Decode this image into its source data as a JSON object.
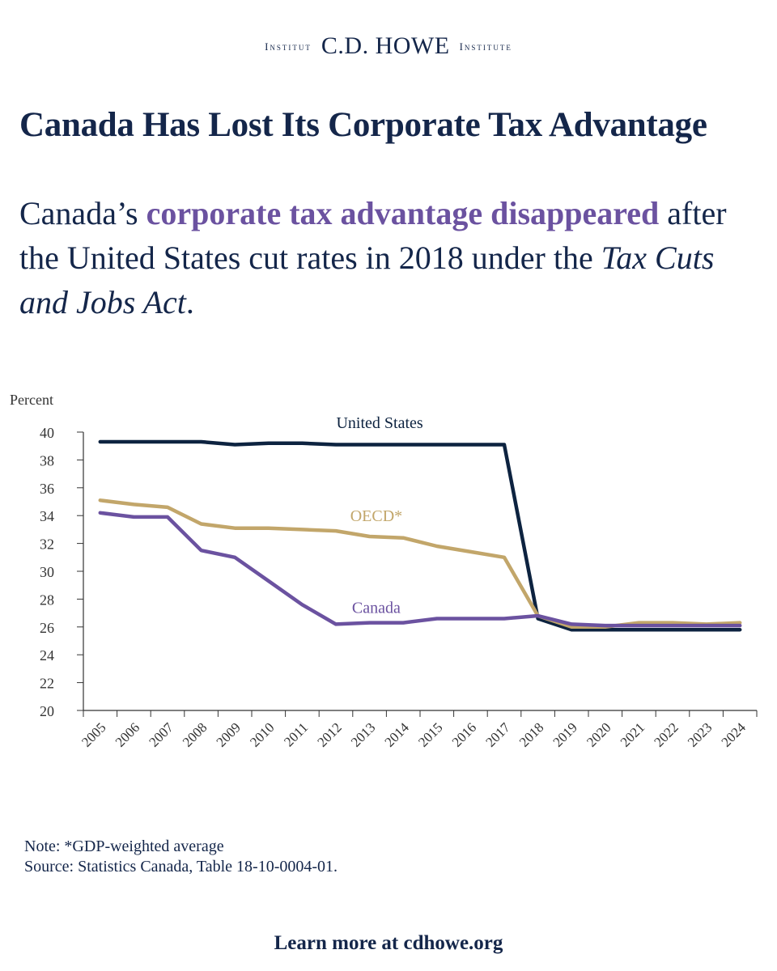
{
  "masthead": {
    "left": "Institut",
    "center": "C.D. HOWE",
    "right": "Institute"
  },
  "headline": "Canada Has Lost Its Corporate Tax Advantage",
  "subhead": {
    "part1": "Canada’s ",
    "highlight": "corporate tax advantage disappeared",
    "part2": " after the United States cut rates in 2018 under the ",
    "italic": "Tax Cuts and Jobs Act",
    "part3": "."
  },
  "colors": {
    "navy": "#14264a",
    "us": "#0d2340",
    "oecd": "#c2a66a",
    "canada": "#6b52a0"
  },
  "chart_data": {
    "type": "line",
    "ylabel": "Percent",
    "ylim": [
      20,
      40
    ],
    "yticks": [
      20,
      22,
      24,
      26,
      28,
      30,
      32,
      34,
      36,
      38,
      40
    ],
    "categories": [
      "2005",
      "2006",
      "2007",
      "2008",
      "2009",
      "2010",
      "2011",
      "2012",
      "2013",
      "2014",
      "2015",
      "2016",
      "2017",
      "2018",
      "2019",
      "2020",
      "2021",
      "2022",
      "2023",
      "2024"
    ],
    "series": [
      {
        "name": "United States",
        "color": "#0d2340",
        "values": [
          39.3,
          39.3,
          39.3,
          39.3,
          39.1,
          39.2,
          39.2,
          39.1,
          39.1,
          39.1,
          39.1,
          39.1,
          39.1,
          26.6,
          25.8,
          25.8,
          25.8,
          25.8,
          25.8,
          25.8
        ]
      },
      {
        "name": "OECD*",
        "color": "#c2a66a",
        "values": [
          35.1,
          34.8,
          34.6,
          33.4,
          33.1,
          33.1,
          33.0,
          32.9,
          32.5,
          32.4,
          31.8,
          31.4,
          31.0,
          26.8,
          26.0,
          26.0,
          26.3,
          26.3,
          26.2,
          26.3
        ]
      },
      {
        "name": "Canada",
        "color": "#6b52a0",
        "values": [
          34.2,
          33.9,
          33.9,
          31.5,
          31.0,
          29.3,
          27.6,
          26.2,
          26.3,
          26.3,
          26.6,
          26.6,
          26.6,
          26.8,
          26.2,
          26.1,
          26.1,
          26.1,
          26.1,
          26.1
        ]
      }
    ]
  },
  "note": "Note: *GDP-weighted average",
  "source": "Source: Statistics Canada, Table 18-10-0004-01.",
  "footer": "Learn more at cdhowe.org"
}
